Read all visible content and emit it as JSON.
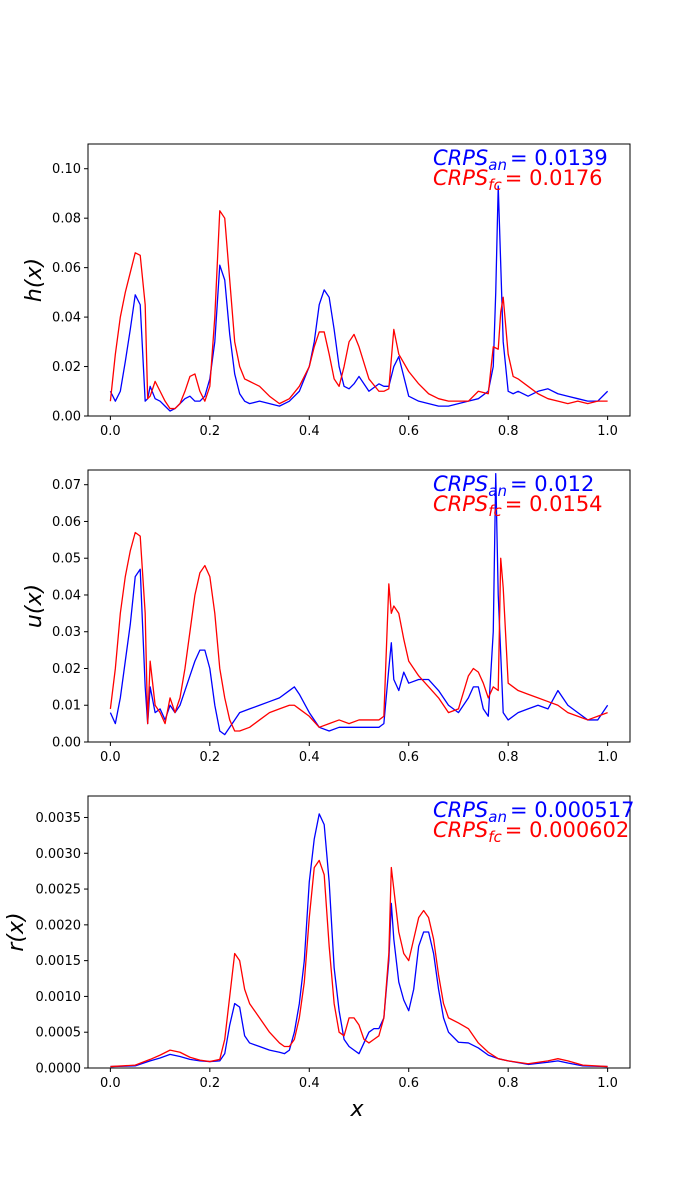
{
  "colors": {
    "analysis": "#0000ff",
    "forecast": "#ff0000",
    "axes": "#000000",
    "background": "#ffffff"
  },
  "chart_data": [
    {
      "type": "line",
      "ylabel": "h(x)",
      "xlabel": "",
      "xlim": [
        -0.045,
        1.045
      ],
      "ylim": [
        0,
        0.11
      ],
      "xticks": [
        "0.0",
        "0.2",
        "0.4",
        "0.6",
        "0.8",
        "1.0"
      ],
      "yticks": [
        "0.00",
        "0.02",
        "0.04",
        "0.06",
        "0.08",
        "0.10"
      ],
      "annotations": [
        {
          "var": "CRPS",
          "sub": "an",
          "eq": "= ",
          "value": "0.0139",
          "color": "#0000ff"
        },
        {
          "var": "CRPS",
          "sub": "fc",
          "eq": "= ",
          "value": "0.0176",
          "color": "#ff0000"
        }
      ],
      "series": [
        {
          "color": "#0000ff",
          "x": [
            0,
            0.01,
            0.02,
            0.03,
            0.04,
            0.05,
            0.06,
            0.07,
            0.075,
            0.08,
            0.09,
            0.1,
            0.11,
            0.12,
            0.13,
            0.14,
            0.15,
            0.16,
            0.17,
            0.18,
            0.19,
            0.2,
            0.21,
            0.22,
            0.23,
            0.24,
            0.25,
            0.26,
            0.27,
            0.28,
            0.3,
            0.32,
            0.34,
            0.36,
            0.38,
            0.4,
            0.41,
            0.42,
            0.43,
            0.44,
            0.45,
            0.46,
            0.47,
            0.48,
            0.49,
            0.5,
            0.52,
            0.54,
            0.55,
            0.56,
            0.57,
            0.58,
            0.6,
            0.62,
            0.64,
            0.66,
            0.68,
            0.7,
            0.72,
            0.74,
            0.76,
            0.77,
            0.775,
            0.78,
            0.79,
            0.8,
            0.81,
            0.82,
            0.84,
            0.86,
            0.88,
            0.9,
            0.92,
            0.94,
            0.96,
            0.98,
            1.0
          ],
          "y": [
            0.01,
            0.006,
            0.01,
            0.022,
            0.035,
            0.049,
            0.045,
            0.006,
            0.007,
            0.012,
            0.007,
            0.006,
            0.004,
            0.002,
            0.003,
            0.005,
            0.007,
            0.008,
            0.006,
            0.006,
            0.008,
            0.015,
            0.03,
            0.061,
            0.055,
            0.033,
            0.017,
            0.009,
            0.006,
            0.005,
            0.006,
            0.005,
            0.004,
            0.006,
            0.01,
            0.02,
            0.03,
            0.045,
            0.051,
            0.048,
            0.035,
            0.02,
            0.012,
            0.011,
            0.013,
            0.016,
            0.01,
            0.013,
            0.012,
            0.012,
            0.02,
            0.024,
            0.008,
            0.006,
            0.005,
            0.004,
            0.004,
            0.005,
            0.006,
            0.007,
            0.01,
            0.02,
            0.05,
            0.093,
            0.03,
            0.01,
            0.009,
            0.01,
            0.008,
            0.01,
            0.011,
            0.009,
            0.008,
            0.007,
            0.006,
            0.006,
            0.01
          ]
        },
        {
          "color": "#ff0000",
          "x": [
            0,
            0.01,
            0.02,
            0.03,
            0.04,
            0.05,
            0.06,
            0.07,
            0.075,
            0.08,
            0.09,
            0.1,
            0.11,
            0.12,
            0.13,
            0.14,
            0.15,
            0.16,
            0.17,
            0.18,
            0.19,
            0.2,
            0.21,
            0.22,
            0.23,
            0.24,
            0.25,
            0.26,
            0.27,
            0.28,
            0.3,
            0.32,
            0.34,
            0.36,
            0.38,
            0.4,
            0.41,
            0.42,
            0.43,
            0.44,
            0.45,
            0.46,
            0.47,
            0.48,
            0.49,
            0.5,
            0.52,
            0.54,
            0.55,
            0.56,
            0.57,
            0.58,
            0.6,
            0.62,
            0.64,
            0.66,
            0.68,
            0.7,
            0.72,
            0.74,
            0.76,
            0.77,
            0.78,
            0.785,
            0.79,
            0.8,
            0.81,
            0.82,
            0.84,
            0.86,
            0.88,
            0.9,
            0.92,
            0.94,
            0.96,
            0.98,
            1.0
          ],
          "y": [
            0.006,
            0.025,
            0.04,
            0.05,
            0.058,
            0.066,
            0.065,
            0.045,
            0.007,
            0.008,
            0.014,
            0.01,
            0.006,
            0.003,
            0.003,
            0.005,
            0.01,
            0.016,
            0.017,
            0.01,
            0.006,
            0.012,
            0.04,
            0.083,
            0.08,
            0.055,
            0.03,
            0.02,
            0.015,
            0.014,
            0.012,
            0.008,
            0.005,
            0.007,
            0.012,
            0.02,
            0.028,
            0.034,
            0.034,
            0.025,
            0.015,
            0.012,
            0.02,
            0.03,
            0.033,
            0.028,
            0.015,
            0.01,
            0.01,
            0.011,
            0.035,
            0.025,
            0.018,
            0.013,
            0.009,
            0.007,
            0.006,
            0.006,
            0.006,
            0.01,
            0.009,
            0.028,
            0.027,
            0.042,
            0.048,
            0.025,
            0.016,
            0.015,
            0.012,
            0.009,
            0.007,
            0.006,
            0.005,
            0.006,
            0.005,
            0.006,
            0.006
          ]
        }
      ]
    },
    {
      "type": "line",
      "ylabel": "u(x)",
      "xlabel": "",
      "xlim": [
        -0.045,
        1.045
      ],
      "ylim": [
        0,
        0.074
      ],
      "xticks": [
        "0.0",
        "0.2",
        "0.4",
        "0.6",
        "0.8",
        "1.0"
      ],
      "yticks": [
        "0.00",
        "0.01",
        "0.02",
        "0.03",
        "0.04",
        "0.05",
        "0.06",
        "0.07"
      ],
      "annotations": [
        {
          "var": "CRPS",
          "sub": "an",
          "eq": "= ",
          "value": "0.012",
          "color": "#0000ff"
        },
        {
          "var": "CRPS",
          "sub": "fc",
          "eq": "= ",
          "value": "0.0154",
          "color": "#ff0000"
        }
      ],
      "series": [
        {
          "color": "#0000ff",
          "x": [
            0,
            0.01,
            0.02,
            0.03,
            0.04,
            0.05,
            0.06,
            0.07,
            0.075,
            0.08,
            0.09,
            0.1,
            0.11,
            0.12,
            0.13,
            0.14,
            0.15,
            0.16,
            0.17,
            0.18,
            0.19,
            0.2,
            0.21,
            0.22,
            0.23,
            0.24,
            0.25,
            0.26,
            0.28,
            0.3,
            0.32,
            0.34,
            0.36,
            0.37,
            0.38,
            0.4,
            0.42,
            0.44,
            0.46,
            0.48,
            0.5,
            0.52,
            0.54,
            0.55,
            0.56,
            0.565,
            0.57,
            0.58,
            0.59,
            0.6,
            0.62,
            0.64,
            0.66,
            0.68,
            0.7,
            0.72,
            0.73,
            0.74,
            0.75,
            0.76,
            0.77,
            0.775,
            0.78,
            0.79,
            0.8,
            0.82,
            0.84,
            0.86,
            0.88,
            0.9,
            0.92,
            0.94,
            0.96,
            0.98,
            1.0
          ],
          "y": [
            0.008,
            0.005,
            0.012,
            0.022,
            0.032,
            0.045,
            0.047,
            0.015,
            0.005,
            0.015,
            0.008,
            0.009,
            0.006,
            0.01,
            0.008,
            0.01,
            0.014,
            0.018,
            0.022,
            0.025,
            0.025,
            0.02,
            0.01,
            0.003,
            0.002,
            0.004,
            0.006,
            0.008,
            0.009,
            0.01,
            0.011,
            0.012,
            0.014,
            0.015,
            0.013,
            0.008,
            0.004,
            0.003,
            0.004,
            0.004,
            0.004,
            0.004,
            0.004,
            0.005,
            0.02,
            0.027,
            0.017,
            0.014,
            0.019,
            0.016,
            0.017,
            0.017,
            0.014,
            0.01,
            0.008,
            0.012,
            0.015,
            0.015,
            0.009,
            0.007,
            0.03,
            0.073,
            0.04,
            0.008,
            0.006,
            0.008,
            0.009,
            0.01,
            0.009,
            0.014,
            0.01,
            0.008,
            0.006,
            0.006,
            0.01
          ]
        },
        {
          "color": "#ff0000",
          "x": [
            0,
            0.01,
            0.02,
            0.03,
            0.04,
            0.05,
            0.06,
            0.07,
            0.075,
            0.08,
            0.09,
            0.1,
            0.11,
            0.12,
            0.13,
            0.14,
            0.15,
            0.16,
            0.17,
            0.18,
            0.19,
            0.2,
            0.21,
            0.22,
            0.23,
            0.24,
            0.25,
            0.26,
            0.28,
            0.3,
            0.32,
            0.34,
            0.36,
            0.37,
            0.38,
            0.4,
            0.42,
            0.44,
            0.46,
            0.48,
            0.5,
            0.52,
            0.54,
            0.55,
            0.56,
            0.565,
            0.57,
            0.58,
            0.59,
            0.6,
            0.62,
            0.64,
            0.66,
            0.68,
            0.7,
            0.72,
            0.73,
            0.74,
            0.75,
            0.76,
            0.77,
            0.78,
            0.785,
            0.79,
            0.8,
            0.82,
            0.84,
            0.86,
            0.88,
            0.9,
            0.92,
            0.94,
            0.96,
            0.98,
            1.0
          ],
          "y": [
            0.009,
            0.02,
            0.035,
            0.045,
            0.052,
            0.057,
            0.056,
            0.035,
            0.005,
            0.022,
            0.01,
            0.008,
            0.005,
            0.012,
            0.008,
            0.012,
            0.02,
            0.03,
            0.04,
            0.046,
            0.048,
            0.045,
            0.035,
            0.02,
            0.012,
            0.006,
            0.003,
            0.003,
            0.004,
            0.006,
            0.008,
            0.009,
            0.01,
            0.01,
            0.009,
            0.007,
            0.004,
            0.005,
            0.006,
            0.005,
            0.006,
            0.006,
            0.006,
            0.007,
            0.043,
            0.035,
            0.037,
            0.035,
            0.028,
            0.022,
            0.018,
            0.015,
            0.012,
            0.008,
            0.009,
            0.018,
            0.02,
            0.019,
            0.016,
            0.012,
            0.015,
            0.014,
            0.05,
            0.042,
            0.016,
            0.014,
            0.013,
            0.012,
            0.011,
            0.01,
            0.008,
            0.007,
            0.006,
            0.007,
            0.008
          ]
        }
      ]
    },
    {
      "type": "line",
      "ylabel": "r(x)",
      "xlabel": "x",
      "xlim": [
        -0.045,
        1.045
      ],
      "ylim": [
        0,
        0.0038
      ],
      "xticks": [
        "0.0",
        "0.2",
        "0.4",
        "0.6",
        "0.8",
        "1.0"
      ],
      "yticks": [
        "0.0000",
        "0.0005",
        "0.0010",
        "0.0015",
        "0.0020",
        "0.0025",
        "0.0030",
        "0.0035"
      ],
      "annotations": [
        {
          "var": "CRPS",
          "sub": "an",
          "eq": "= ",
          "value": "0.000517",
          "color": "#0000ff"
        },
        {
          "var": "CRPS",
          "sub": "fc",
          "eq": "= ",
          "value": "0.000602",
          "color": "#ff0000"
        }
      ],
      "series": [
        {
          "color": "#0000ff",
          "x": [
            0,
            0.05,
            0.08,
            0.1,
            0.12,
            0.14,
            0.16,
            0.18,
            0.2,
            0.22,
            0.23,
            0.24,
            0.25,
            0.26,
            0.27,
            0.28,
            0.3,
            0.32,
            0.34,
            0.35,
            0.36,
            0.37,
            0.38,
            0.39,
            0.4,
            0.41,
            0.42,
            0.43,
            0.44,
            0.45,
            0.46,
            0.47,
            0.48,
            0.49,
            0.5,
            0.51,
            0.52,
            0.53,
            0.54,
            0.55,
            0.56,
            0.565,
            0.57,
            0.58,
            0.59,
            0.6,
            0.61,
            0.62,
            0.63,
            0.64,
            0.65,
            0.66,
            0.67,
            0.68,
            0.7,
            0.72,
            0.74,
            0.76,
            0.78,
            0.8,
            0.84,
            0.88,
            0.9,
            0.92,
            0.95,
            1.0
          ],
          "y": [
            2e-05,
            3e-05,
            0.0001,
            0.00014,
            0.00019,
            0.00016,
            0.00012,
            0.0001,
            9e-05,
            0.0001,
            0.0002,
            0.0006,
            0.0009,
            0.00085,
            0.00045,
            0.00035,
            0.0003,
            0.00025,
            0.00022,
            0.0002,
            0.00025,
            0.0005,
            0.0009,
            0.0015,
            0.0026,
            0.0032,
            0.00355,
            0.0034,
            0.0026,
            0.0014,
            0.0008,
            0.0004,
            0.0003,
            0.00025,
            0.0002,
            0.00035,
            0.0005,
            0.00055,
            0.00055,
            0.0007,
            0.0015,
            0.0023,
            0.0018,
            0.0012,
            0.00095,
            0.0008,
            0.0011,
            0.0017,
            0.0019,
            0.0019,
            0.0016,
            0.0011,
            0.0007,
            0.0005,
            0.00036,
            0.00035,
            0.00028,
            0.00018,
            0.00013,
            0.0001,
            5e-05,
            8e-05,
            0.0001,
            7e-05,
            3e-05,
            2e-05
          ]
        },
        {
          "color": "#ff0000",
          "x": [
            0,
            0.05,
            0.08,
            0.1,
            0.12,
            0.14,
            0.16,
            0.18,
            0.2,
            0.22,
            0.23,
            0.24,
            0.25,
            0.26,
            0.27,
            0.28,
            0.3,
            0.32,
            0.34,
            0.35,
            0.36,
            0.37,
            0.38,
            0.39,
            0.4,
            0.41,
            0.42,
            0.43,
            0.44,
            0.45,
            0.46,
            0.47,
            0.48,
            0.49,
            0.5,
            0.51,
            0.52,
            0.53,
            0.54,
            0.55,
            0.56,
            0.565,
            0.57,
            0.58,
            0.59,
            0.6,
            0.61,
            0.62,
            0.63,
            0.64,
            0.65,
            0.66,
            0.67,
            0.68,
            0.7,
            0.72,
            0.74,
            0.76,
            0.78,
            0.8,
            0.84,
            0.88,
            0.9,
            0.92,
            0.95,
            1.0
          ],
          "y": [
            2e-05,
            4e-05,
            0.00012,
            0.00018,
            0.00025,
            0.00022,
            0.00015,
            0.00011,
            9e-05,
            0.00012,
            0.0004,
            0.001,
            0.0016,
            0.0015,
            0.0011,
            0.0009,
            0.0007,
            0.0005,
            0.00035,
            0.0003,
            0.0003,
            0.0004,
            0.0007,
            0.0012,
            0.0021,
            0.0028,
            0.0029,
            0.0027,
            0.0017,
            0.0009,
            0.0005,
            0.00045,
            0.0007,
            0.0007,
            0.0006,
            0.0004,
            0.00035,
            0.0004,
            0.00045,
            0.0007,
            0.0016,
            0.0028,
            0.0025,
            0.0019,
            0.0016,
            0.0015,
            0.0018,
            0.0021,
            0.0022,
            0.0021,
            0.0018,
            0.0013,
            0.0009,
            0.0007,
            0.00063,
            0.00055,
            0.00035,
            0.00022,
            0.00013,
            0.0001,
            6e-05,
            0.0001,
            0.00013,
            0.0001,
            4e-05,
            2e-05
          ]
        }
      ]
    }
  ]
}
